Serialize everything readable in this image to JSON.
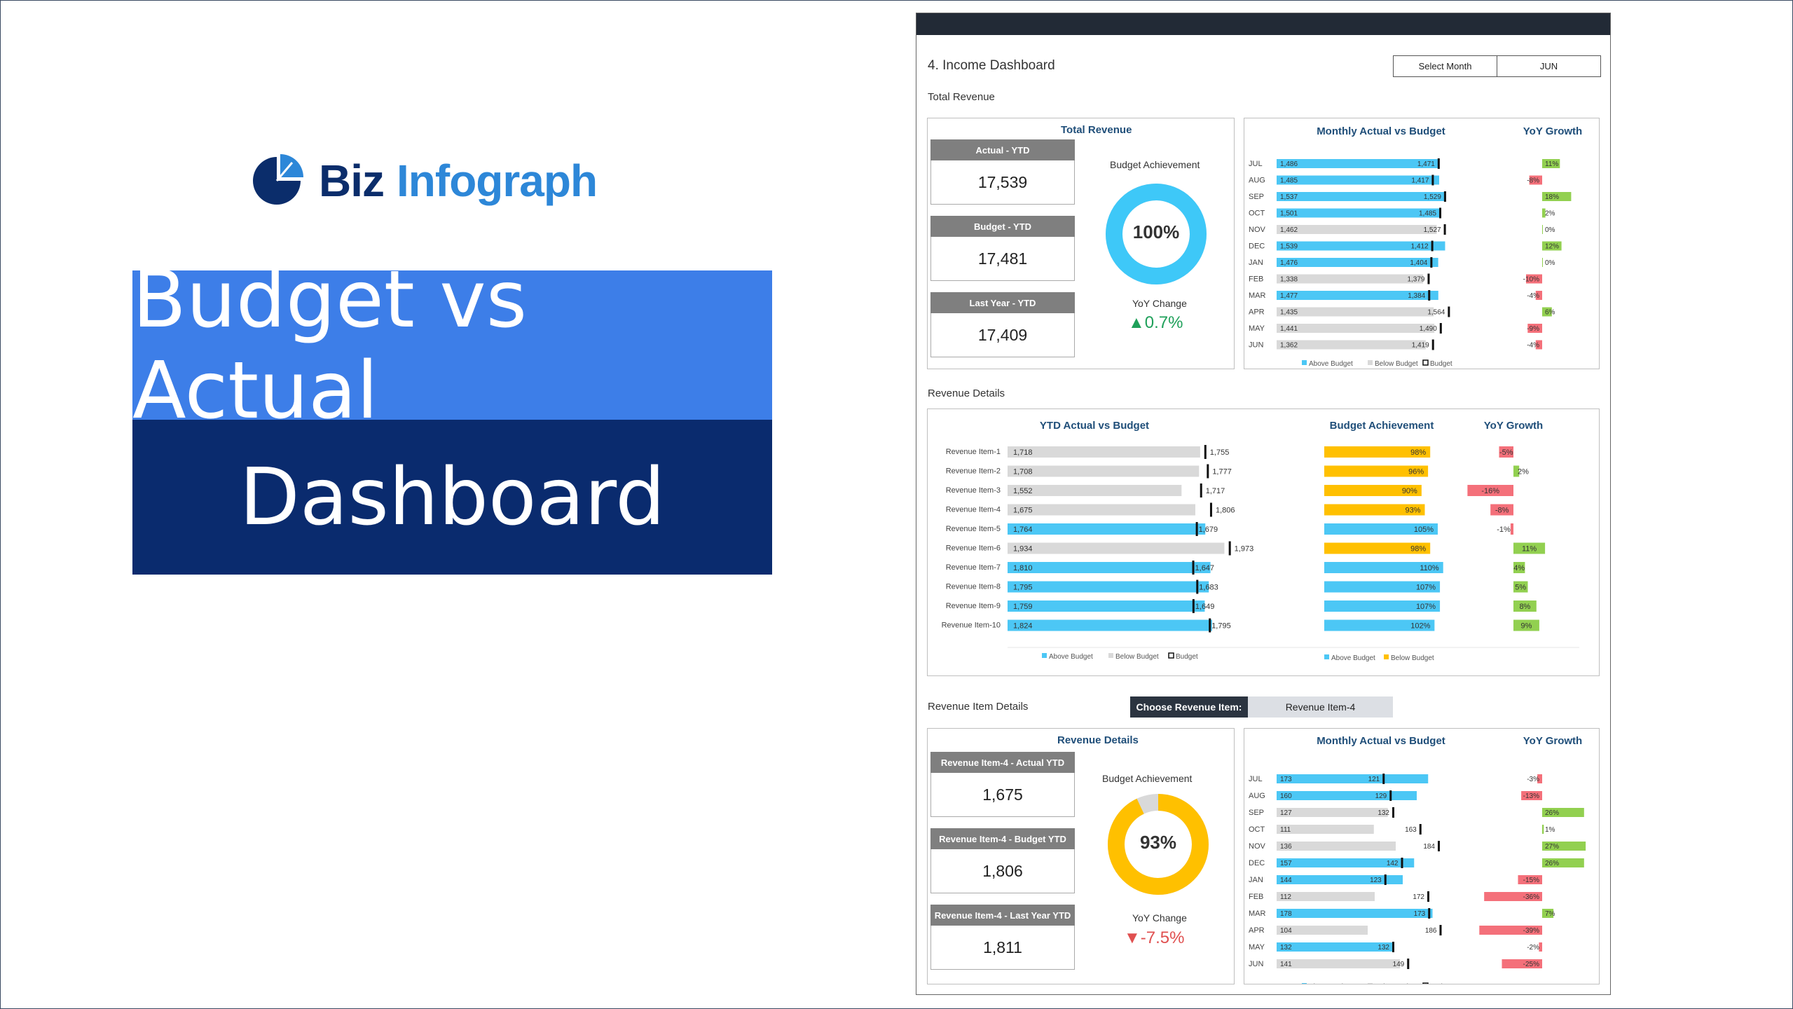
{
  "branding": {
    "logo_word1": "Biz",
    "logo_word2": "Infograph",
    "hero_line1": "Budget vs Actual",
    "hero_line2": "Dashboard"
  },
  "colors": {
    "above_budget": "#4cc7f5",
    "below_budget": "#d9d9d9",
    "budget_marker": "#111111",
    "achievement": "#ffc000",
    "yoy_positive": "#92d050",
    "yoy_negative": "#f4707a",
    "hero_top": "#3d7ee8",
    "hero_bottom": "#0a2b6e"
  },
  "dashboard": {
    "title": "4. Income Dashboard",
    "select_month_label": "Select Month",
    "select_month_value": "JUN",
    "section_total_revenue": "Total Revenue",
    "section_revenue_details": "Revenue Details",
    "section_item_details": "Revenue Item Details",
    "choose_item_label": "Choose Revenue Item:",
    "choose_item_value": "Revenue Item-4"
  },
  "total_revenue": {
    "panel_title": "Total Revenue",
    "kpis": [
      {
        "label": "Actual - YTD",
        "value": "17,539"
      },
      {
        "label": "Budget - YTD",
        "value": "17,481"
      },
      {
        "label": "Last Year - YTD",
        "value": "17,409"
      }
    ],
    "budget_achievement_label": "Budget Achievement",
    "budget_achievement_value": "100%",
    "budget_achievement_fraction": 1.0,
    "yoy_change_label": "YoY Change",
    "yoy_change_value": "▲0.7%"
  },
  "monthly_total": {
    "title": "Monthly Actual vs Budget",
    "yoy_title": "YoY Growth",
    "months": [
      "JUL",
      "AUG",
      "SEP",
      "OCT",
      "NOV",
      "DEC",
      "JAN",
      "FEB",
      "MAR",
      "APR",
      "MAY",
      "JUN"
    ],
    "actual": [
      1486,
      1485,
      1537,
      1501,
      1462,
      1539,
      1476,
      1338,
      1477,
      1435,
      1441,
      1362
    ],
    "budget": [
      1471,
      1417,
      1529,
      1485,
      1527,
      1412,
      1404,
      1379,
      1384,
      1564,
      1490,
      1419
    ],
    "actual_labels": [
      "1,486",
      "1,485",
      "1,537",
      "1,501",
      "1,462",
      "1,539",
      "1,476",
      "1,338",
      "1,477",
      "1,435",
      "1,441",
      "1,362"
    ],
    "budget_labels": [
      "1,471",
      "1,417",
      "1,529",
      "1,485",
      "1,527",
      "1,412",
      "1,404",
      "1,379",
      "1,384",
      "1,564",
      "1,490",
      "1,419"
    ],
    "yoy": [
      11,
      -8,
      18,
      2,
      0,
      12,
      0,
      -10,
      -4,
      6,
      -9,
      -4
    ],
    "yoy_labels": [
      "11%",
      "-8%",
      "18%",
      "2%",
      "0%",
      "12%",
      "0%",
      "-10%",
      "-4%",
      "6%",
      "-9%",
      "-4%"
    ],
    "legend": [
      "Above Budget",
      "Below Budget",
      "Budget"
    ]
  },
  "revenue_details": {
    "ytd_title": "YTD Actual vs Budget",
    "ach_title": "Budget Achievement",
    "yoy_title": "YoY Growth",
    "items": [
      "Revenue Item-1",
      "Revenue Item-2",
      "Revenue Item-3",
      "Revenue Item-4",
      "Revenue Item-5",
      "Revenue Item-6",
      "Revenue Item-7",
      "Revenue Item-8",
      "Revenue Item-9",
      "Revenue Item-10"
    ],
    "actual": [
      1718,
      1708,
      1552,
      1675,
      1764,
      1934,
      1810,
      1795,
      1759,
      1824
    ],
    "budget": [
      1755,
      1777,
      1717,
      1806,
      1679,
      1973,
      1647,
      1683,
      1649,
      1795
    ],
    "actual_labels": [
      "1,718",
      "1,708",
      "1,552",
      "1,675",
      "1,764",
      "1,934",
      "1,810",
      "1,795",
      "1,759",
      "1,824"
    ],
    "budget_labels": [
      "1,755",
      "1,777",
      "1,717",
      "1,806",
      "1,679",
      "1,973",
      "1,647",
      "1,683",
      "1,649",
      "1,795"
    ],
    "achievement": [
      98,
      96,
      90,
      93,
      105,
      98,
      110,
      107,
      107,
      102
    ],
    "achievement_labels": [
      "98%",
      "96%",
      "90%",
      "93%",
      "105%",
      "98%",
      "110%",
      "107%",
      "107%",
      "102%"
    ],
    "yoy": [
      -5,
      2,
      -16,
      -8,
      -1,
      11,
      4,
      5,
      8,
      9
    ],
    "yoy_labels": [
      "-5%",
      "2%",
      "-16%",
      "-8%",
      "-1%",
      "11%",
      "4%",
      "5%",
      "8%",
      "9%"
    ],
    "legend_ytd": [
      "Above Budget",
      "Below Budget",
      "Budget"
    ],
    "legend_ach": [
      "Above Budget",
      "Below Budget"
    ]
  },
  "item_details": {
    "panel_title": "Revenue Details",
    "kpis": [
      {
        "label": "Revenue Item-4 - Actual YTD",
        "value": "1,675"
      },
      {
        "label": "Revenue Item-4 - Budget YTD",
        "value": "1,806"
      },
      {
        "label": "Revenue Item-4 - Last Year YTD",
        "value": "1,811"
      }
    ],
    "budget_achievement_label": "Budget Achievement",
    "budget_achievement_value": "93%",
    "budget_achievement_fraction": 0.93,
    "yoy_change_label": "YoY Change",
    "yoy_change_value": "▼-7.5%"
  },
  "monthly_item": {
    "title": "Monthly Actual vs Budget",
    "yoy_title": "YoY Growth",
    "months": [
      "JUL",
      "AUG",
      "SEP",
      "OCT",
      "NOV",
      "DEC",
      "JAN",
      "FEB",
      "MAR",
      "APR",
      "MAY",
      "JUN"
    ],
    "actual": [
      173,
      160,
      127,
      111,
      136,
      157,
      144,
      112,
      178,
      104,
      132,
      141
    ],
    "budget": [
      121,
      129,
      132,
      163,
      184,
      142,
      123,
      172,
      173,
      186,
      132,
      149
    ],
    "actual_labels": [
      "173",
      "160",
      "127",
      "111",
      "136",
      "157",
      "144",
      "112",
      "178",
      "104",
      "132",
      "141"
    ],
    "budget_labels": [
      "121",
      "129",
      "132",
      "163",
      "184",
      "142",
      "123",
      "172",
      "173",
      "186",
      "132",
      "149"
    ],
    "yoy": [
      -3,
      -13,
      26,
      1,
      27,
      26,
      -15,
      -36,
      7,
      -39,
      -2,
      -25
    ],
    "yoy_labels": [
      "-3%",
      "-13%",
      "26%",
      "1%",
      "27%",
      "26%",
      "-15%",
      "-36%",
      "7%",
      "-39%",
      "-2%",
      "-25%"
    ],
    "legend": [
      "Above Budget",
      "Below Budget",
      "Budget"
    ]
  }
}
